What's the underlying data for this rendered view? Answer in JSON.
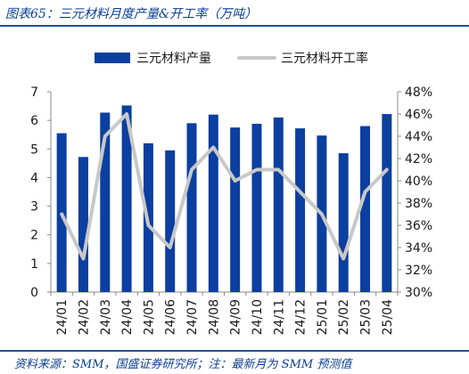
{
  "header": {
    "title": "图表65：三元材料月度产量&开工率（万吨）"
  },
  "footer": {
    "source": "资料来源：SMM，国盛证券研究所；注：最新月为 SMM 预测值"
  },
  "colors": {
    "bar": "#0b3fa0",
    "line": "#c8c8c8",
    "accent": "#0a3d91"
  },
  "chart_data": {
    "type": "bar",
    "categories": [
      "24/01",
      "24/02",
      "24/03",
      "24/04",
      "24/05",
      "24/06",
      "24/07",
      "24/08",
      "24/09",
      "24/10",
      "24/11",
      "24/12",
      "25/01",
      "25/02",
      "25/03",
      "25/04"
    ],
    "series": [
      {
        "name": "三元材料产量",
        "type": "bar",
        "axis": "left",
        "values": [
          5.55,
          4.72,
          6.27,
          6.52,
          5.2,
          4.95,
          5.9,
          6.2,
          5.75,
          5.88,
          6.1,
          5.72,
          5.47,
          4.85,
          5.8,
          6.22
        ]
      },
      {
        "name": "三元材料开工率",
        "type": "line",
        "axis": "right",
        "values": [
          37,
          33,
          44,
          46,
          36,
          34,
          41,
          43,
          40,
          41,
          41,
          39,
          37,
          33,
          39,
          41
        ]
      }
    ],
    "y_left": {
      "min": 0,
      "max": 7,
      "ticks": [
        0,
        1,
        2,
        3,
        4,
        5,
        6,
        7
      ],
      "tick_labels": [
        "0",
        "1",
        "2",
        "3",
        "4",
        "5",
        "6",
        "7"
      ]
    },
    "y_right": {
      "min": 30,
      "max": 48,
      "ticks": [
        30,
        32,
        34,
        36,
        38,
        40,
        42,
        44,
        46,
        48
      ],
      "tick_labels": [
        "30%",
        "32%",
        "34%",
        "36%",
        "38%",
        "40%",
        "42%",
        "44%",
        "46%",
        "48%"
      ]
    },
    "legend_position": "top",
    "grid": false
  }
}
